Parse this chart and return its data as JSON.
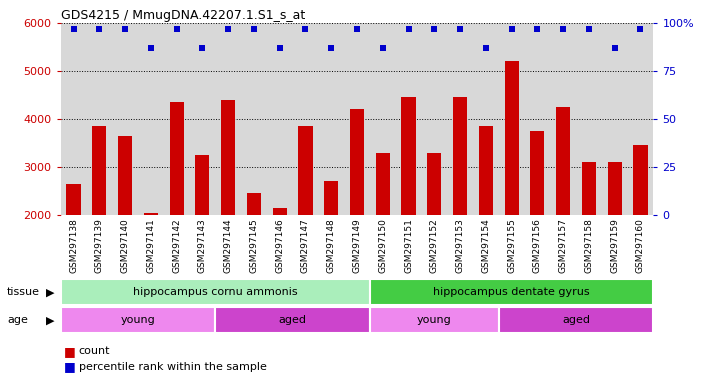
{
  "title": "GDS4215 / MmugDNA.42207.1.S1_s_at",
  "samples": [
    "GSM297138",
    "GSM297139",
    "GSM297140",
    "GSM297141",
    "GSM297142",
    "GSM297143",
    "GSM297144",
    "GSM297145",
    "GSM297146",
    "GSM297147",
    "GSM297148",
    "GSM297149",
    "GSM297150",
    "GSM297151",
    "GSM297152",
    "GSM297153",
    "GSM297154",
    "GSM297155",
    "GSM297156",
    "GSM297157",
    "GSM297158",
    "GSM297159",
    "GSM297160"
  ],
  "counts": [
    2650,
    3850,
    3650,
    2050,
    4350,
    3250,
    4400,
    2450,
    2150,
    3850,
    2700,
    4200,
    3300,
    4450,
    3300,
    4450,
    3850,
    5200,
    3750,
    4250,
    3100,
    3100,
    3450
  ],
  "percentile_ranks": [
    97,
    97,
    97,
    87,
    97,
    87,
    97,
    97,
    87,
    97,
    87,
    97,
    87,
    97,
    97,
    97,
    87,
    97,
    97,
    97,
    97,
    87,
    97
  ],
  "ylim_left": [
    2000,
    6000
  ],
  "ylim_right": [
    0,
    100
  ],
  "bar_color": "#cc0000",
  "dot_color": "#0000cc",
  "plot_bg_color": "#d8d8d8",
  "tissue_groups": [
    {
      "label": "hippocampus cornu ammonis",
      "start": 0,
      "end": 12,
      "color": "#aaeebb"
    },
    {
      "label": "hippocampus dentate gyrus",
      "start": 12,
      "end": 23,
      "color": "#44cc44"
    }
  ],
  "age_groups": [
    {
      "label": "young",
      "start": 0,
      "end": 6,
      "color": "#ee88ee"
    },
    {
      "label": "aged",
      "start": 6,
      "end": 12,
      "color": "#cc44cc"
    },
    {
      "label": "young",
      "start": 12,
      "end": 17,
      "color": "#ee88ee"
    },
    {
      "label": "aged",
      "start": 17,
      "end": 23,
      "color": "#cc44cc"
    }
  ],
  "legend_count_color": "#cc0000",
  "legend_dot_color": "#0000cc",
  "tick_color_left": "#cc0000",
  "tick_color_right": "#0000cc"
}
